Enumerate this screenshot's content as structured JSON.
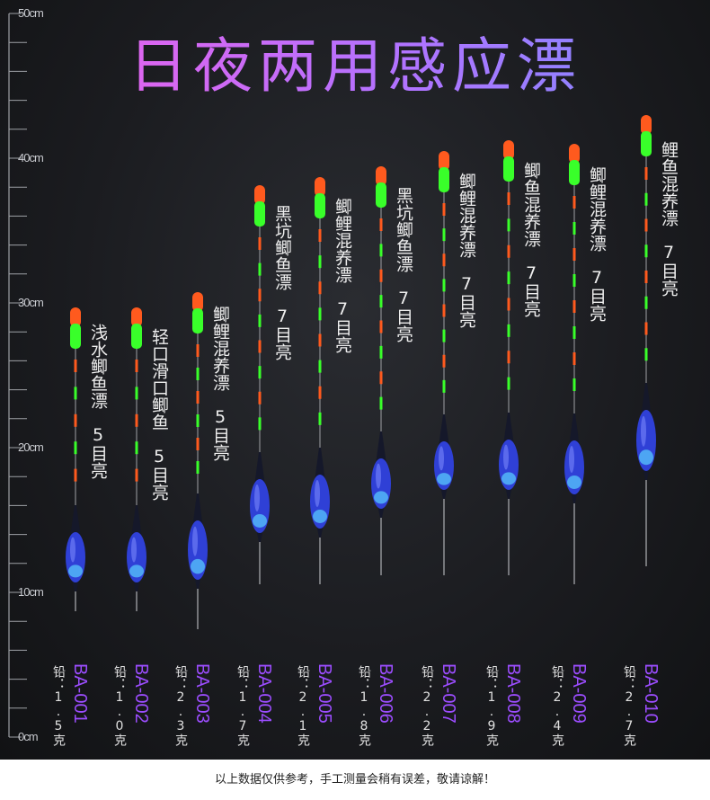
{
  "title": "日夜两用感应漂",
  "ruler": {
    "unit_labels": [
      "50cm",
      "40cm",
      "30cm",
      "20cm",
      "10cm",
      "0cm"
    ]
  },
  "colors": {
    "body": "#2f40d6",
    "tip_red": "#ff5a1e",
    "tip_green": "#39ff2a",
    "stem": "#8a8c90",
    "accent": "#9c4dff"
  },
  "floats": [
    {
      "model": "BA-001",
      "weight_label": "铅：",
      "weight": "1.5克",
      "desc_line1": "浅水鲫鱼漂",
      "desc_line2": "5目亮"
    },
    {
      "model": "BA-002",
      "weight_label": "铅：",
      "weight": "1.0克",
      "desc_line1": "轻口滑口鲫鱼",
      "desc_line2": "5目亮"
    },
    {
      "model": "BA-003",
      "weight_label": "铅：",
      "weight": "2.3克",
      "desc_line1": "鲫鲤混养漂",
      "desc_line2": "5目亮"
    },
    {
      "model": "BA-004",
      "weight_label": "铅：",
      "weight": "1.7克",
      "desc_line1": "黑坑鲫鱼漂",
      "desc_line2": "7目亮"
    },
    {
      "model": "BA-005",
      "weight_label": "铅：",
      "weight": "2.1克",
      "desc_line1": "鲫鲤混养漂",
      "desc_line2": "7目亮"
    },
    {
      "model": "BA-006",
      "weight_label": "铅：",
      "weight": "1.8克",
      "desc_line1": "黑坑鲫鱼漂",
      "desc_line2": "7目亮"
    },
    {
      "model": "BA-007",
      "weight_label": "铅：",
      "weight": "2.2克",
      "desc_line1": "鲫鲤混养漂",
      "desc_line2": "7目亮"
    },
    {
      "model": "BA-008",
      "weight_label": "铅：",
      "weight": "1.9克",
      "desc_line1": "鲫鱼混养漂",
      "desc_line2": "7目亮"
    },
    {
      "model": "BA-009",
      "weight_label": "铅：",
      "weight": "2.4克",
      "desc_line1": "鲫鲤混养漂",
      "desc_line2": "7目亮"
    },
    {
      "model": "BA-010",
      "weight_label": "铅：",
      "weight": "2.7克",
      "desc_line1": "鲤鱼混养漂",
      "desc_line2": "7目亮"
    }
  ],
  "footer": "以上数据仅供参考，手工测量会稍有误差，敬请谅解！"
}
